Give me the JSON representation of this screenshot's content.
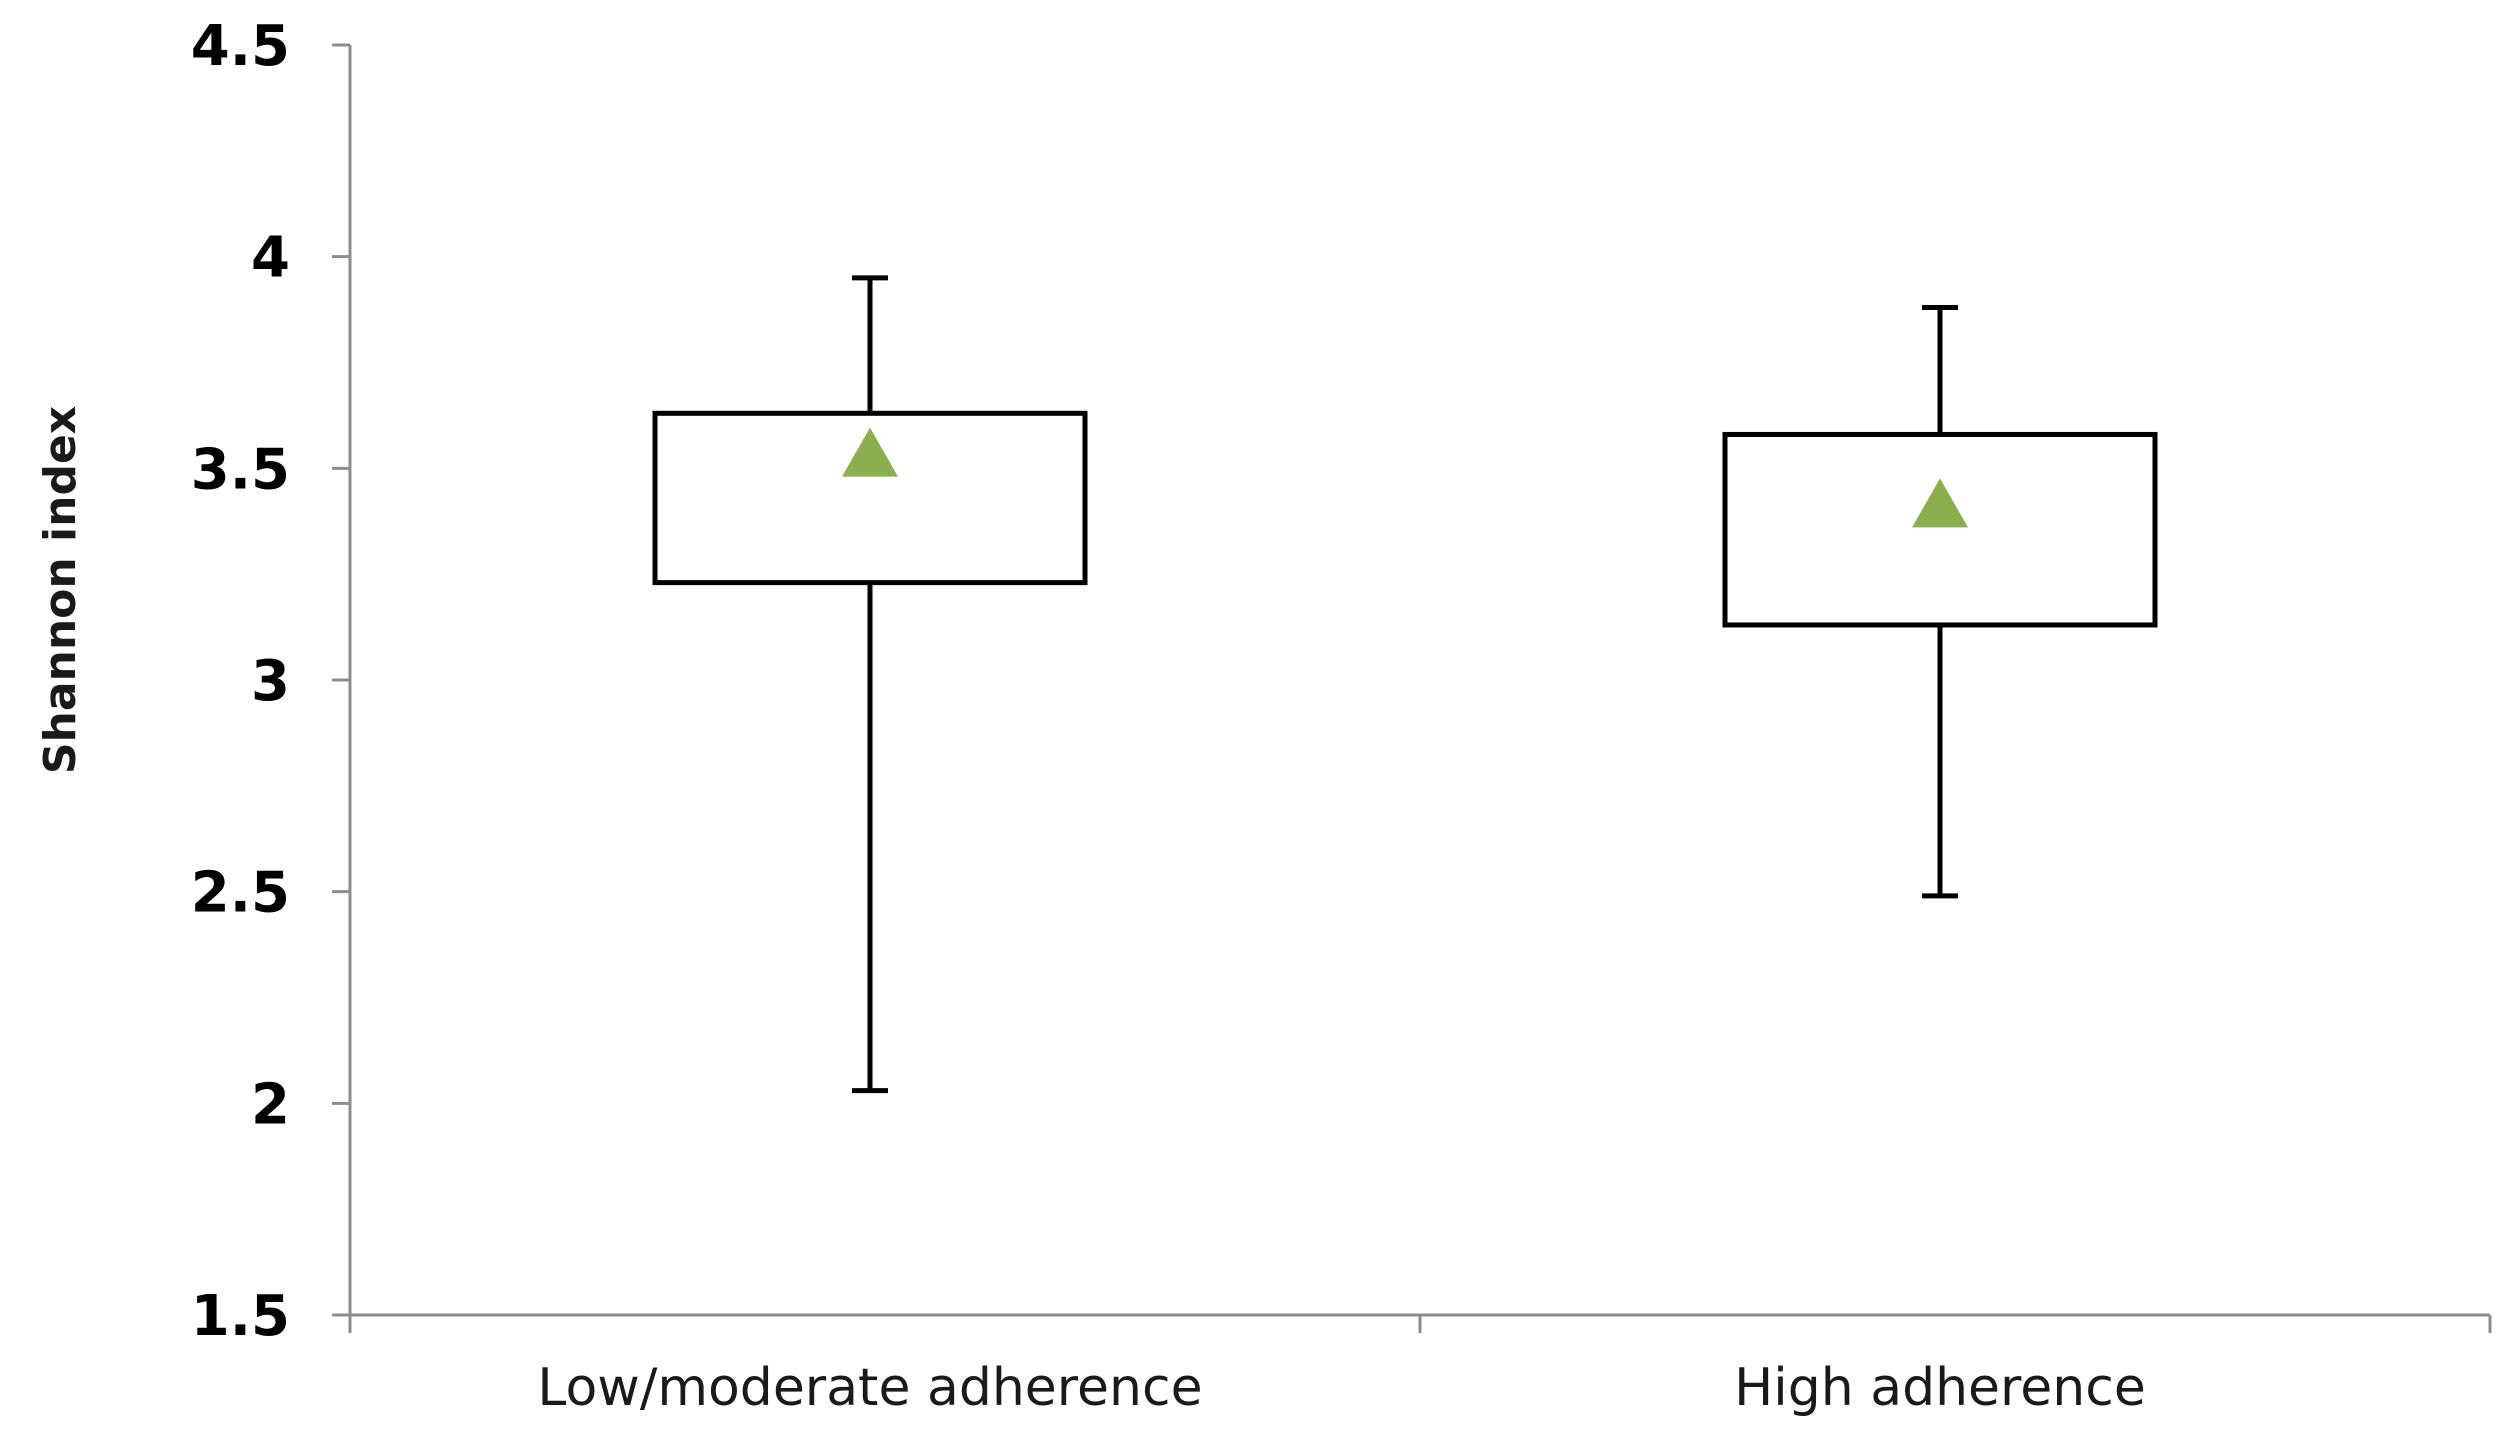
{
  "chart_data": {
    "type": "box",
    "title": "",
    "xlabel": "",
    "ylabel": "Shannon index",
    "ylim": [
      1.5,
      4.5
    ],
    "yticks": [
      1.5,
      2,
      2.5,
      3,
      3.5,
      4,
      4.5
    ],
    "ytick_labels": [
      "1.5",
      "2",
      "2.5",
      "3",
      "3.5",
      "4",
      "4.5"
    ],
    "grid": false,
    "legend": "none",
    "categories": [
      "Low/moderate adherence",
      "High adherence"
    ],
    "boxes": [
      {
        "category": "Low/moderate adherence",
        "whisker_low": 2.03,
        "q1": 3.23,
        "q3": 3.63,
        "whisker_high": 3.95,
        "mean": 3.53
      },
      {
        "category": "High adherence",
        "whisker_low": 2.49,
        "q1": 3.13,
        "q3": 3.58,
        "whisker_high": 3.88,
        "mean": 3.41
      }
    ],
    "colors": {
      "box_stroke": "#000000",
      "mean_marker": "#8BAE4F",
      "axis": "#8c8c8c"
    }
  }
}
